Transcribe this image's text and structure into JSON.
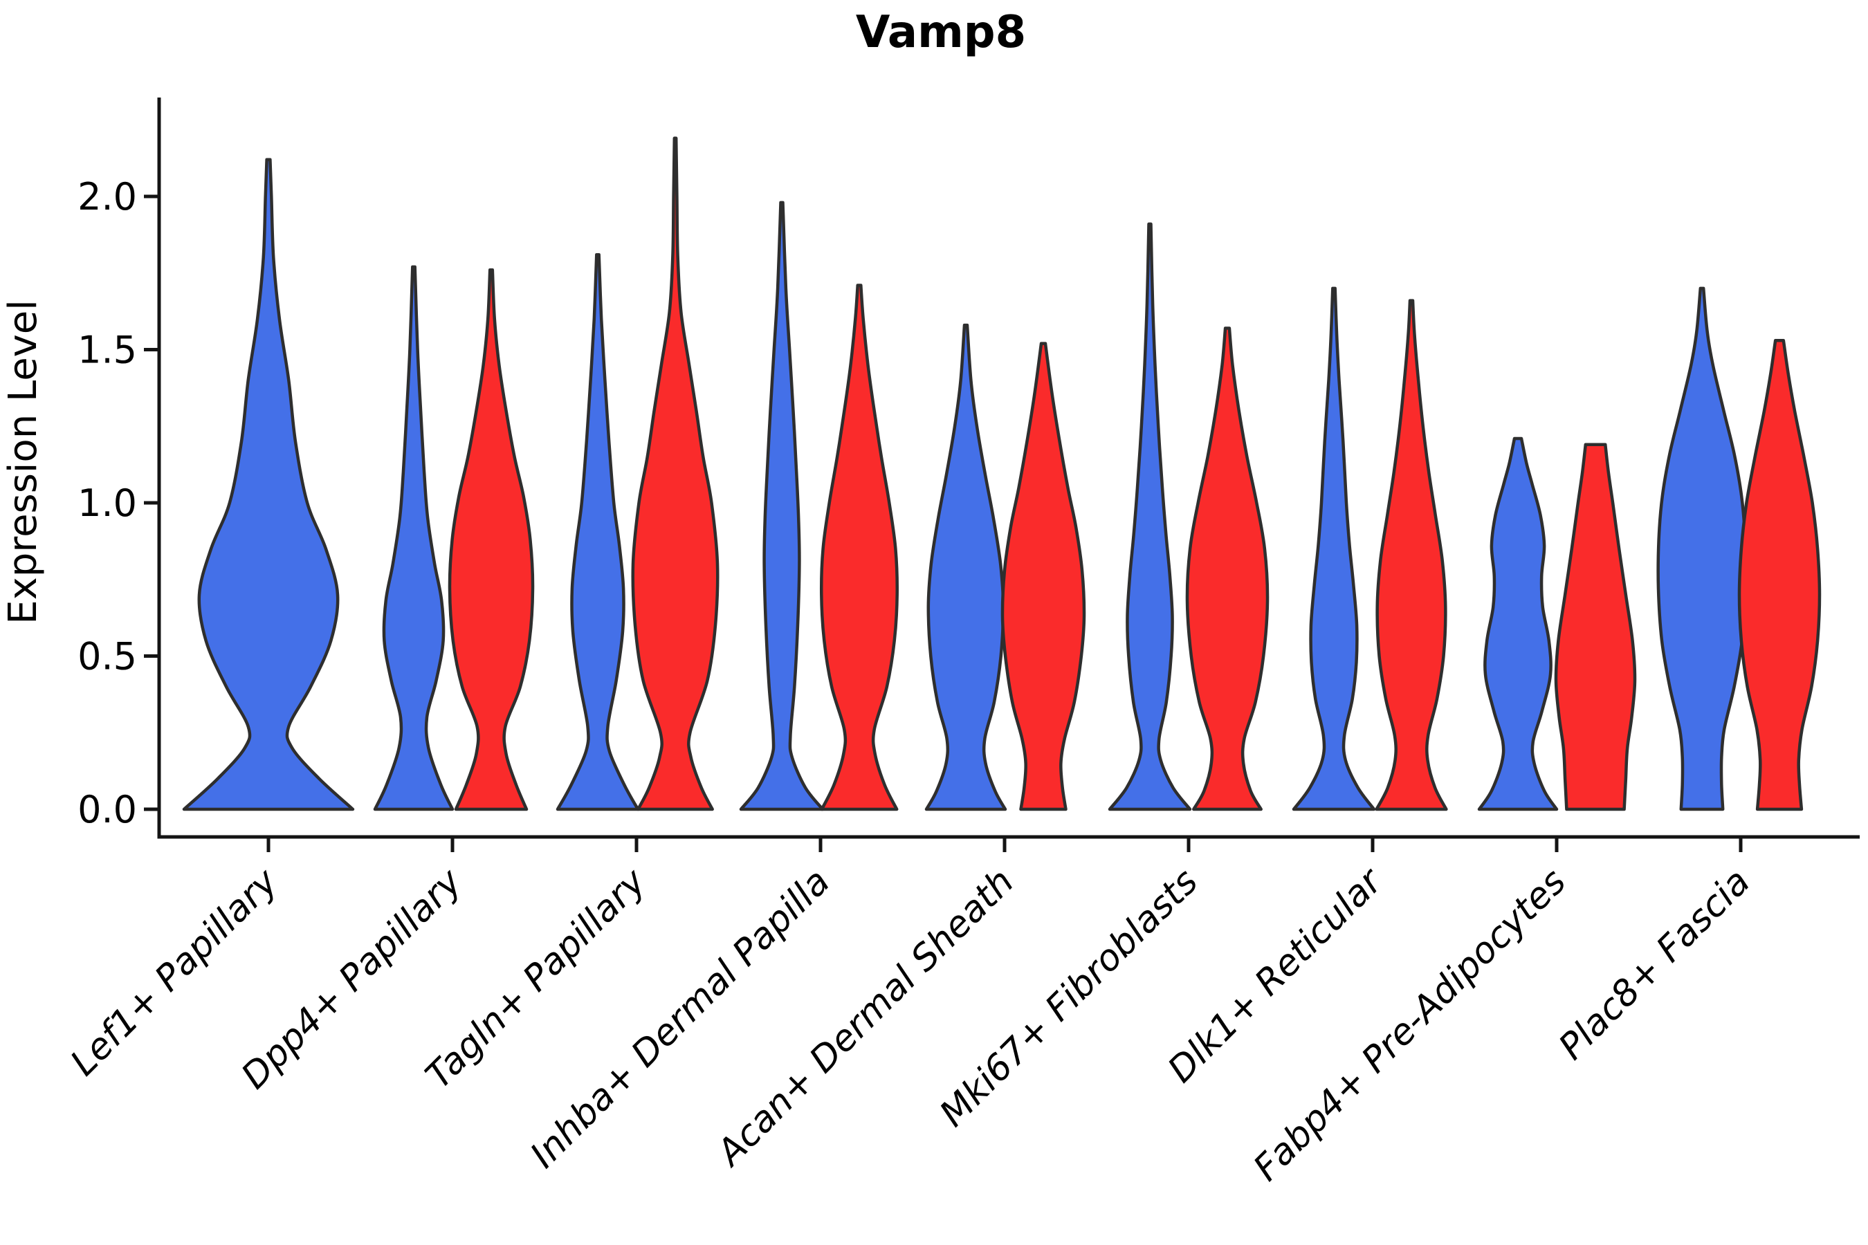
{
  "chart_data": {
    "type": "violin",
    "title": "Vamp8",
    "ylabel": "Expression Level",
    "xlabel": "",
    "yticks": [
      0.0,
      0.5,
      1.0,
      1.5,
      2.0
    ],
    "ylim": [
      -0.1,
      2.32
    ],
    "grid": false,
    "legend": "none",
    "background": "#ffffff",
    "colors": {
      "blue": "#4470E8",
      "red": "#FA2B2B",
      "edge": "#2e2e2e",
      "axis": "#141414",
      "text": "#000000"
    },
    "categories": [
      "Lef1+ Papillary",
      "Dpp4+ Papillary",
      "Tagln+ Papillary",
      "Inhba+ Dermal Papilla",
      "Acan+ Dermal Sheath",
      "Mki67+ Fibroblasts",
      "Dlk1+ Reticular",
      "Fabp4+ Pre-Adipocytes",
      "Plac8+ Fascia"
    ],
    "groups": [
      "blue",
      "red"
    ],
    "violins": [
      {
        "category": 0,
        "group": "blue",
        "side": "solo",
        "peak": 2.12,
        "half_width": 122,
        "profile": [
          [
            0,
            1.0
          ],
          [
            0.1,
            0.6
          ],
          [
            0.2,
            0.28
          ],
          [
            0.27,
            0.24
          ],
          [
            0.4,
            0.5
          ],
          [
            0.55,
            0.74
          ],
          [
            0.7,
            0.82
          ],
          [
            0.85,
            0.68
          ],
          [
            1.0,
            0.46
          ],
          [
            1.2,
            0.32
          ],
          [
            1.4,
            0.24
          ],
          [
            1.6,
            0.13
          ],
          [
            1.8,
            0.06
          ],
          [
            2.0,
            0.035
          ],
          [
            2.12,
            0.02
          ]
        ]
      },
      {
        "category": 1,
        "group": "blue",
        "side": "left",
        "peak": 1.77,
        "half_width": 56,
        "profile": [
          [
            0,
            1.0
          ],
          [
            0.08,
            0.7
          ],
          [
            0.2,
            0.38
          ],
          [
            0.3,
            0.34
          ],
          [
            0.42,
            0.58
          ],
          [
            0.55,
            0.76
          ],
          [
            0.68,
            0.72
          ],
          [
            0.8,
            0.54
          ],
          [
            0.95,
            0.36
          ],
          [
            1.1,
            0.27
          ],
          [
            1.3,
            0.18
          ],
          [
            1.5,
            0.1
          ],
          [
            1.77,
            0.03
          ]
        ]
      },
      {
        "category": 1,
        "group": "red",
        "side": "right",
        "peak": 1.76,
        "half_width": 60,
        "profile": [
          [
            0,
            0.85
          ],
          [
            0.08,
            0.6
          ],
          [
            0.18,
            0.36
          ],
          [
            0.27,
            0.34
          ],
          [
            0.4,
            0.7
          ],
          [
            0.55,
            0.92
          ],
          [
            0.72,
            1.0
          ],
          [
            0.88,
            0.94
          ],
          [
            1.02,
            0.78
          ],
          [
            1.15,
            0.56
          ],
          [
            1.3,
            0.36
          ],
          [
            1.45,
            0.19
          ],
          [
            1.6,
            0.08
          ],
          [
            1.76,
            0.03
          ]
        ]
      },
      {
        "category": 2,
        "group": "blue",
        "side": "left",
        "peak": 1.81,
        "half_width": 58,
        "profile": [
          [
            0,
            1.0
          ],
          [
            0.08,
            0.66
          ],
          [
            0.19,
            0.29
          ],
          [
            0.27,
            0.25
          ],
          [
            0.42,
            0.46
          ],
          [
            0.58,
            0.62
          ],
          [
            0.72,
            0.64
          ],
          [
            0.86,
            0.54
          ],
          [
            1.0,
            0.4
          ],
          [
            1.2,
            0.28
          ],
          [
            1.4,
            0.18
          ],
          [
            1.6,
            0.09
          ],
          [
            1.81,
            0.03
          ]
        ]
      },
      {
        "category": 2,
        "group": "red",
        "side": "right",
        "peak": 2.19,
        "half_width": 61,
        "profile": [
          [
            0,
            0.88
          ],
          [
            0.07,
            0.62
          ],
          [
            0.17,
            0.37
          ],
          [
            0.25,
            0.35
          ],
          [
            0.42,
            0.76
          ],
          [
            0.6,
            0.95
          ],
          [
            0.8,
            1.0
          ],
          [
            1.0,
            0.86
          ],
          [
            1.15,
            0.66
          ],
          [
            1.3,
            0.5
          ],
          [
            1.45,
            0.33
          ],
          [
            1.62,
            0.14
          ],
          [
            1.8,
            0.06
          ],
          [
            2.0,
            0.04
          ],
          [
            2.19,
            0.02
          ]
        ]
      },
      {
        "category": 3,
        "group": "blue",
        "side": "left",
        "peak": 1.98,
        "half_width": 59,
        "profile": [
          [
            0,
            1.0
          ],
          [
            0.07,
            0.58
          ],
          [
            0.17,
            0.25
          ],
          [
            0.24,
            0.21
          ],
          [
            0.4,
            0.31
          ],
          [
            0.6,
            0.39
          ],
          [
            0.8,
            0.43
          ],
          [
            0.95,
            0.41
          ],
          [
            1.1,
            0.36
          ],
          [
            1.3,
            0.28
          ],
          [
            1.5,
            0.19
          ],
          [
            1.7,
            0.1
          ],
          [
            1.98,
            0.025
          ]
        ]
      },
      {
        "category": 3,
        "group": "red",
        "side": "right",
        "peak": 1.71,
        "half_width": 57,
        "profile": [
          [
            0,
            0.95
          ],
          [
            0.08,
            0.64
          ],
          [
            0.18,
            0.4
          ],
          [
            0.26,
            0.38
          ],
          [
            0.4,
            0.7
          ],
          [
            0.55,
            0.89
          ],
          [
            0.7,
            0.96
          ],
          [
            0.85,
            0.92
          ],
          [
            1.0,
            0.76
          ],
          [
            1.15,
            0.56
          ],
          [
            1.3,
            0.38
          ],
          [
            1.45,
            0.22
          ],
          [
            1.6,
            0.1
          ],
          [
            1.71,
            0.04
          ]
        ]
      },
      {
        "category": 4,
        "group": "blue",
        "side": "left",
        "peak": 1.58,
        "half_width": 57,
        "profile": [
          [
            0,
            1.0
          ],
          [
            0.06,
            0.74
          ],
          [
            0.15,
            0.5
          ],
          [
            0.23,
            0.48
          ],
          [
            0.35,
            0.72
          ],
          [
            0.5,
            0.89
          ],
          [
            0.66,
            0.95
          ],
          [
            0.8,
            0.88
          ],
          [
            0.95,
            0.7
          ],
          [
            1.1,
            0.48
          ],
          [
            1.25,
            0.28
          ],
          [
            1.4,
            0.13
          ],
          [
            1.58,
            0.035
          ]
        ]
      },
      {
        "category": 4,
        "group": "red",
        "side": "right",
        "peak": 1.52,
        "half_width": 59,
        "profile": [
          [
            0,
            0.55
          ],
          [
            0.07,
            0.47
          ],
          [
            0.15,
            0.43
          ],
          [
            0.23,
            0.52
          ],
          [
            0.35,
            0.76
          ],
          [
            0.5,
            0.93
          ],
          [
            0.63,
            1.0
          ],
          [
            0.78,
            0.95
          ],
          [
            0.92,
            0.8
          ],
          [
            1.05,
            0.6
          ],
          [
            1.2,
            0.4
          ],
          [
            1.35,
            0.22
          ],
          [
            1.52,
            0.05
          ]
        ]
      },
      {
        "category": 5,
        "group": "blue",
        "side": "left",
        "peak": 1.91,
        "half_width": 58,
        "profile": [
          [
            0,
            1.0
          ],
          [
            0.07,
            0.58
          ],
          [
            0.16,
            0.27
          ],
          [
            0.23,
            0.23
          ],
          [
            0.35,
            0.41
          ],
          [
            0.5,
            0.53
          ],
          [
            0.63,
            0.56
          ],
          [
            0.76,
            0.5
          ],
          [
            0.9,
            0.4
          ],
          [
            1.05,
            0.31
          ],
          [
            1.25,
            0.21
          ],
          [
            1.45,
            0.13
          ],
          [
            1.65,
            0.07
          ],
          [
            1.91,
            0.025
          ]
        ]
      },
      {
        "category": 5,
        "group": "red",
        "side": "right",
        "peak": 1.57,
        "half_width": 58,
        "profile": [
          [
            0,
            0.84
          ],
          [
            0.06,
            0.58
          ],
          [
            0.15,
            0.4
          ],
          [
            0.23,
            0.42
          ],
          [
            0.35,
            0.7
          ],
          [
            0.5,
            0.9
          ],
          [
            0.68,
            1.0
          ],
          [
            0.85,
            0.93
          ],
          [
            1.0,
            0.73
          ],
          [
            1.15,
            0.49
          ],
          [
            1.3,
            0.29
          ],
          [
            1.45,
            0.13
          ],
          [
            1.57,
            0.05
          ]
        ]
      },
      {
        "category": 6,
        "group": "blue",
        "side": "left",
        "peak": 1.7,
        "half_width": 58,
        "profile": [
          [
            0,
            1.0
          ],
          [
            0.07,
            0.6
          ],
          [
            0.16,
            0.29
          ],
          [
            0.24,
            0.26
          ],
          [
            0.36,
            0.46
          ],
          [
            0.48,
            0.56
          ],
          [
            0.6,
            0.57
          ],
          [
            0.73,
            0.49
          ],
          [
            0.86,
            0.39
          ],
          [
            1.0,
            0.31
          ],
          [
            1.2,
            0.23
          ],
          [
            1.4,
            0.13
          ],
          [
            1.55,
            0.07
          ],
          [
            1.7,
            0.03
          ]
        ]
      },
      {
        "category": 6,
        "group": "red",
        "side": "right",
        "peak": 1.66,
        "half_width": 56,
        "profile": [
          [
            0,
            0.9
          ],
          [
            0.07,
            0.61
          ],
          [
            0.16,
            0.42
          ],
          [
            0.24,
            0.43
          ],
          [
            0.36,
            0.66
          ],
          [
            0.5,
            0.83
          ],
          [
            0.66,
            0.88
          ],
          [
            0.81,
            0.8
          ],
          [
            0.96,
            0.62
          ],
          [
            1.1,
            0.45
          ],
          [
            1.25,
            0.3
          ],
          [
            1.4,
            0.18
          ],
          [
            1.55,
            0.08
          ],
          [
            1.66,
            0.035
          ]
        ]
      },
      {
        "category": 7,
        "group": "blue",
        "side": "left",
        "peak": 1.21,
        "half_width": 56,
        "profile": [
          [
            0,
            1.0
          ],
          [
            0.06,
            0.68
          ],
          [
            0.15,
            0.42
          ],
          [
            0.22,
            0.39
          ],
          [
            0.32,
            0.62
          ],
          [
            0.44,
            0.84
          ],
          [
            0.55,
            0.8
          ],
          [
            0.66,
            0.64
          ],
          [
            0.76,
            0.61
          ],
          [
            0.86,
            0.68
          ],
          [
            0.96,
            0.58
          ],
          [
            1.06,
            0.37
          ],
          [
            1.13,
            0.22
          ],
          [
            1.21,
            0.09
          ]
        ]
      },
      {
        "category": 7,
        "group": "red",
        "side": "right",
        "peak": 1.19,
        "half_width": 57,
        "profile": [
          [
            0,
            0.73
          ],
          [
            0.1,
            0.77
          ],
          [
            0.2,
            0.81
          ],
          [
            0.3,
            0.92
          ],
          [
            0.42,
            1.0
          ],
          [
            0.55,
            0.94
          ],
          [
            0.7,
            0.77
          ],
          [
            0.85,
            0.6
          ],
          [
            1.0,
            0.44
          ],
          [
            1.1,
            0.33
          ],
          [
            1.19,
            0.25
          ]
        ]
      },
      {
        "category": 8,
        "group": "blue",
        "side": "left",
        "peak": 1.7,
        "half_width": 63,
        "profile": [
          [
            0,
            0.48
          ],
          [
            0.08,
            0.45
          ],
          [
            0.17,
            0.45
          ],
          [
            0.26,
            0.51
          ],
          [
            0.4,
            0.74
          ],
          [
            0.55,
            0.92
          ],
          [
            0.72,
            1.0
          ],
          [
            0.88,
            0.99
          ],
          [
            1.02,
            0.91
          ],
          [
            1.16,
            0.74
          ],
          [
            1.3,
            0.5
          ],
          [
            1.45,
            0.25
          ],
          [
            1.56,
            0.12
          ],
          [
            1.7,
            0.035
          ]
        ]
      },
      {
        "category": 8,
        "group": "red",
        "side": "right",
        "peak": 1.53,
        "half_width": 58,
        "profile": [
          [
            0,
            0.55
          ],
          [
            0.08,
            0.5
          ],
          [
            0.16,
            0.48
          ],
          [
            0.26,
            0.56
          ],
          [
            0.4,
            0.8
          ],
          [
            0.55,
            0.95
          ],
          [
            0.7,
            1.0
          ],
          [
            0.85,
            0.95
          ],
          [
            1.0,
            0.82
          ],
          [
            1.15,
            0.61
          ],
          [
            1.3,
            0.38
          ],
          [
            1.42,
            0.22
          ],
          [
            1.53,
            0.1
          ]
        ]
      }
    ]
  }
}
